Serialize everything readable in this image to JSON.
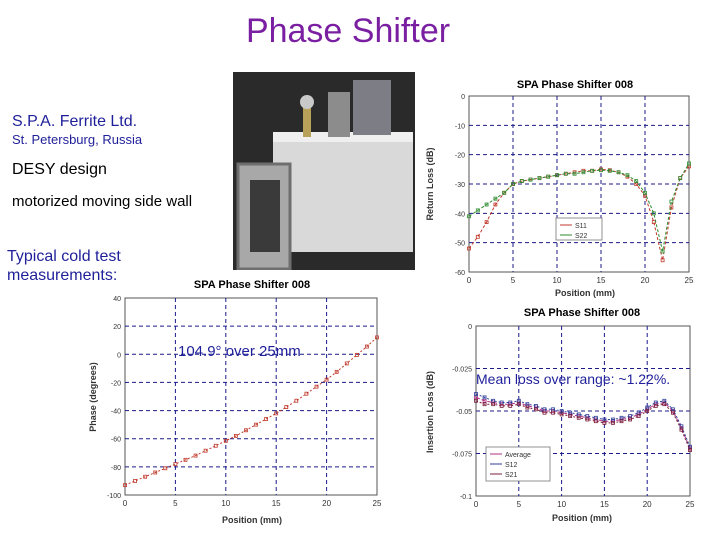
{
  "page_title": "Phase Shifter",
  "company": "S.P.A. Ferrite Ltd.",
  "location": "St. Petersburg, Russia",
  "design": "DESY design",
  "feature": "motorized moving side wall",
  "cold_test_line1": "Typical cold test",
  "cold_test_line2": "measurements:",
  "phase_note": "104.9° over 25mm",
  "loss_note": "Mean loss over range: ~1.22%.",
  "colors": {
    "title": "#7a1fa2",
    "text_blue": "#1f1f9a",
    "s11": "#c0392b",
    "s22": "#2e8b2e",
    "average": "#b03080",
    "s12": "#2f3f9a",
    "s21": "#7a1f3a",
    "grid": "#1b1b8a"
  },
  "chart_data": [
    {
      "id": "return_loss",
      "type": "line",
      "title": "SPA Phase Shifter 008",
      "xlabel": "Position (mm)",
      "ylabel": "Return Loss (dB)",
      "xlim": [
        0,
        25
      ],
      "ylim": [
        -60,
        0
      ],
      "xticks": [
        0,
        5,
        10,
        15,
        20,
        25
      ],
      "yticks": [
        0,
        -10,
        -20,
        -30,
        -40,
        -50,
        -60
      ],
      "xtick_labels": [
        "0",
        "5",
        "10",
        "15",
        "20",
        "25"
      ],
      "ytick_labels": [
        "0",
        "-10",
        "-20",
        "-30",
        "-40",
        "-50",
        "-60"
      ],
      "grid": true,
      "legend_position": "lower-right",
      "series": [
        {
          "name": "S11",
          "color": "#c0392b",
          "x": [
            0,
            1,
            2,
            3,
            4,
            5,
            6,
            7,
            8,
            9,
            10,
            11,
            12,
            13,
            14,
            15,
            16,
            17,
            18,
            19,
            20,
            21,
            22,
            23,
            24,
            25
          ],
          "y": [
            -52,
            -48,
            -43,
            -37,
            -33,
            -30,
            -29,
            -28.5,
            -28,
            -27.5,
            -27,
            -26.5,
            -26,
            -25.5,
            -25.5,
            -25,
            -25.3,
            -26,
            -27.5,
            -30,
            -34,
            -43,
            -56,
            -38,
            -28,
            -24
          ]
        },
        {
          "name": "S22",
          "color": "#2e8b2e",
          "x": [
            0,
            1,
            2,
            3,
            4,
            5,
            6,
            7,
            8,
            9,
            10,
            11,
            12,
            13,
            14,
            15,
            16,
            17,
            18,
            19,
            20,
            21,
            22,
            23,
            24,
            25
          ],
          "y": [
            -41,
            -39,
            -37,
            -35,
            -33,
            -30,
            -29,
            -28.5,
            -28,
            -27.5,
            -27,
            -26.5,
            -26.5,
            -26,
            -25.5,
            -25.3,
            -25.5,
            -26,
            -27,
            -29,
            -33,
            -40,
            -53,
            -36,
            -28,
            -23
          ]
        }
      ]
    },
    {
      "id": "phase",
      "type": "line",
      "title": "SPA Phase Shifter 008",
      "xlabel": "Position (mm)",
      "ylabel": "Phase (degrees)",
      "xlim": [
        0,
        25
      ],
      "ylim": [
        -100,
        40
      ],
      "xticks": [
        0,
        5,
        10,
        15,
        20,
        25
      ],
      "yticks": [
        40,
        20,
        0,
        -20,
        -40,
        -60,
        -80,
        -100
      ],
      "xtick_labels": [
        "0",
        "5",
        "10",
        "15",
        "20",
        "25"
      ],
      "ytick_labels": [
        "40",
        "20",
        "0",
        "-20",
        "-40",
        "-60",
        "-80",
        "-100"
      ],
      "grid": true,
      "series": [
        {
          "name": "",
          "color": "#c0392b",
          "x": [
            0,
            1,
            2,
            3,
            4,
            5,
            6,
            7,
            8,
            9,
            10,
            11,
            12,
            13,
            14,
            15,
            16,
            17,
            18,
            19,
            20,
            21,
            22,
            23,
            24,
            25
          ],
          "y": [
            -93,
            -90,
            -87,
            -84,
            -81,
            -78,
            -75,
            -72,
            -68.5,
            -65,
            -61.5,
            -58,
            -54,
            -50,
            -46,
            -42,
            -37.5,
            -33,
            -28,
            -23,
            -18,
            -12.5,
            -6.5,
            -0.5,
            5.5,
            12
          ]
        }
      ]
    },
    {
      "id": "insertion_loss",
      "type": "line",
      "title": "SPA Phase Shifter 008",
      "xlabel": "Position (mm)",
      "ylabel": "Insertion Loss (dB)",
      "xlim": [
        0,
        25
      ],
      "ylim": [
        -0.1,
        0
      ],
      "xticks": [
        0,
        5,
        10,
        15,
        20,
        25
      ],
      "yticks": [
        0,
        -0.025,
        -0.05,
        -0.075,
        -0.1
      ],
      "xtick_labels": [
        "0",
        "5",
        "10",
        "15",
        "20",
        "25"
      ],
      "ytick_labels": [
        "0",
        "-0.025",
        "-0.05",
        "-0.075",
        "-0.1"
      ],
      "grid": true,
      "legend_position": "lower-left",
      "series": [
        {
          "name": "Average",
          "color": "#b03080",
          "x": [
            0,
            1,
            2,
            3,
            4,
            5,
            6,
            7,
            8,
            9,
            10,
            11,
            12,
            13,
            14,
            15,
            16,
            17,
            18,
            19,
            20,
            21,
            22,
            23,
            24,
            25
          ],
          "y": [
            -0.042,
            -0.044,
            -0.045,
            -0.046,
            -0.046,
            -0.045,
            -0.047,
            -0.048,
            -0.05,
            -0.05,
            -0.051,
            -0.052,
            -0.053,
            -0.054,
            -0.055,
            -0.056,
            -0.056,
            -0.055,
            -0.054,
            -0.052,
            -0.049,
            -0.046,
            -0.045,
            -0.05,
            -0.06,
            -0.072
          ]
        },
        {
          "name": "S12",
          "color": "#2f3f9a",
          "x": [
            0,
            1,
            2,
            3,
            4,
            5,
            6,
            7,
            8,
            9,
            10,
            11,
            12,
            13,
            14,
            15,
            16,
            17,
            18,
            19,
            20,
            21,
            22,
            23,
            24,
            25
          ],
          "y": [
            -0.04,
            -0.042,
            -0.044,
            -0.045,
            -0.045,
            -0.044,
            -0.046,
            -0.047,
            -0.049,
            -0.049,
            -0.05,
            -0.051,
            -0.052,
            -0.053,
            -0.054,
            -0.055,
            -0.055,
            -0.054,
            -0.053,
            -0.051,
            -0.048,
            -0.045,
            -0.044,
            -0.049,
            -0.059,
            -0.071
          ]
        },
        {
          "name": "S21",
          "color": "#7a1f3a",
          "x": [
            0,
            1,
            2,
            3,
            4,
            5,
            6,
            7,
            8,
            9,
            10,
            11,
            12,
            13,
            14,
            15,
            16,
            17,
            18,
            19,
            20,
            21,
            22,
            23,
            24,
            25
          ],
          "y": [
            -0.044,
            -0.046,
            -0.046,
            -0.047,
            -0.047,
            -0.046,
            -0.048,
            -0.049,
            -0.051,
            -0.051,
            -0.052,
            -0.053,
            -0.054,
            -0.055,
            -0.056,
            -0.057,
            -0.057,
            -0.056,
            -0.055,
            -0.053,
            -0.05,
            -0.047,
            -0.046,
            -0.051,
            -0.061,
            -0.073
          ]
        }
      ]
    }
  ]
}
